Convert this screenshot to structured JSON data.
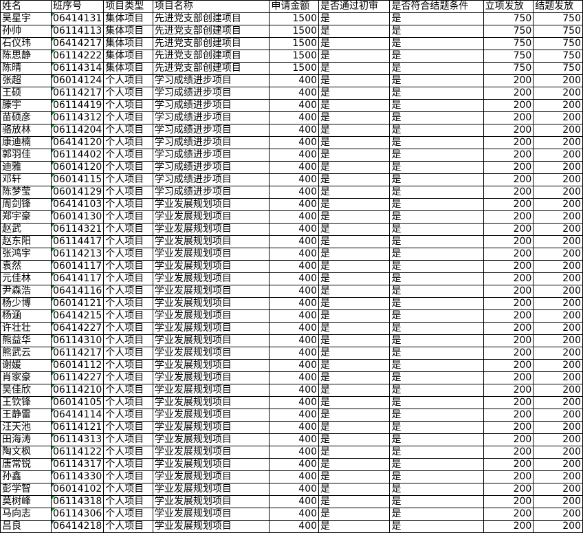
{
  "headers": [
    "姓名",
    "班序号",
    "项目类型",
    "项目名称",
    "申请金额",
    "是否通过初审",
    "是否符合结题条件",
    "立项发放",
    "结题发放"
  ],
  "rows": [
    [
      "吴星宇",
      "06414131",
      "集体项目",
      "先进党支部创建项目",
      "1500",
      "是",
      "是",
      "750",
      "750"
    ],
    [
      "孙帅",
      "06114113",
      "集体项目",
      "先进党支部创建项目",
      "1500",
      "是",
      "是",
      "750",
      "750"
    ],
    [
      "石仪玮",
      "06414217",
      "集体项目",
      "先进党支部创建项目",
      "1500",
      "是",
      "是",
      "750",
      "750"
    ],
    [
      "陈思静",
      "06114222",
      "集体项目",
      "先进党支部创建项目",
      "1500",
      "是",
      "是",
      "750",
      "750"
    ],
    [
      "陈晴",
      "06114314",
      "集体项目",
      "先进党支部创建项目",
      "1500",
      "是",
      "是",
      "750",
      "750"
    ],
    [
      "张超",
      "06014124",
      "个人项目",
      "学习成绩进步项目",
      "400",
      "是",
      "是",
      "200",
      "200"
    ],
    [
      "王硕",
      "06114217",
      "个人项目",
      "学习成绩进步项目",
      "400",
      "是",
      "是",
      "200",
      "200"
    ],
    [
      "滕宇",
      "06114419",
      "个人项目",
      "学习成绩进步项目",
      "400",
      "是",
      "是",
      "200",
      "200"
    ],
    [
      "苗硕彦",
      "06114312",
      "个人项目",
      "学习成绩进步项目",
      "400",
      "是",
      "是",
      "200",
      "200"
    ],
    [
      "骆放林",
      "06114204",
      "个人项目",
      "学习成绩进步项目",
      "400",
      "是",
      "是",
      "200",
      "200"
    ],
    [
      "康迪楠",
      "06414120",
      "个人项目",
      "学习成绩进步项目",
      "400",
      "是",
      "是",
      "200",
      "200"
    ],
    [
      "郭羽佳",
      "06114402",
      "个人项目",
      "学习成绩进步项目",
      "400",
      "是",
      "是",
      "200",
      "200"
    ],
    [
      "迪雅",
      "06014120",
      "个人项目",
      "学习成绩进步项目",
      "400",
      "是",
      "是",
      "200",
      "200"
    ],
    [
      "邓轩",
      "06014115",
      "个人项目",
      "学习成绩进步项目",
      "400",
      "是",
      "是",
      "200",
      "200"
    ],
    [
      "陈梦莹",
      "06014129",
      "个人项目",
      "学习成绩进步项目",
      "400",
      "是",
      "是",
      "200",
      "200"
    ],
    [
      "周剑锋",
      "06414103",
      "个人项目",
      "学业发展规划项目",
      "400",
      "是",
      "是",
      "200",
      "200"
    ],
    [
      "郑宇豪",
      "06014130",
      "个人项目",
      "学业发展规划项目",
      "400",
      "是",
      "是",
      "200",
      "200"
    ],
    [
      "赵武",
      "06114321",
      "个人项目",
      "学业发展规划项目",
      "400",
      "是",
      "是",
      "200",
      "200"
    ],
    [
      "赵东阳",
      "06114417",
      "个人项目",
      "学业发展规划项目",
      "400",
      "是",
      "是",
      "200",
      "200"
    ],
    [
      "张鸿宇",
      "06114213",
      "个人项目",
      "学业发展规划项目",
      "400",
      "是",
      "是",
      "200",
      "200"
    ],
    [
      "袁然",
      "06014117",
      "个人项目",
      "学业发展规划项目",
      "400",
      "是",
      "是",
      "200",
      "200"
    ],
    [
      "元佳林",
      "06414117",
      "个人项目",
      "学业发展规划项目",
      "400",
      "是",
      "是",
      "200",
      "200"
    ],
    [
      "尹森浩",
      "06414116",
      "个人项目",
      "学业发展规划项目",
      "400",
      "是",
      "是",
      "200",
      "200"
    ],
    [
      "杨少博",
      "06014121",
      "个人项目",
      "学业发展规划项目",
      "400",
      "是",
      "是",
      "200",
      "200"
    ],
    [
      "杨涵",
      "06414215",
      "个人项目",
      "学业发展规划项目",
      "400",
      "是",
      "是",
      "200",
      "200"
    ],
    [
      "许壮壮",
      "06414227",
      "个人项目",
      "学业发展规划项目",
      "400",
      "是",
      "是",
      "200",
      "200"
    ],
    [
      "熊益华",
      "06114310",
      "个人项目",
      "学业发展规划项目",
      "400",
      "是",
      "是",
      "200",
      "200"
    ],
    [
      "熊武云",
      "06114217",
      "个人项目",
      "学业发展规划项目",
      "400",
      "是",
      "是",
      "200",
      "200"
    ],
    [
      "谢媛",
      "06014112",
      "个人项目",
      "学业发展规划项目",
      "400",
      "是",
      "是",
      "200",
      "200"
    ],
    [
      "肖家豪",
      "06114227",
      "个人项目",
      "学业发展规划项目",
      "400",
      "是",
      "是",
      "200",
      "200"
    ],
    [
      "吴佳欣",
      "06114210",
      "个人项目",
      "学业发展规划项目",
      "400",
      "是",
      "是",
      "200",
      "200"
    ],
    [
      "王钦锋",
      "06014105",
      "个人项目",
      "学业发展规划项目",
      "400",
      "是",
      "是",
      "200",
      "200"
    ],
    [
      "王静雷",
      "06414114",
      "个人项目",
      "学业发展规划项目",
      "400",
      "是",
      "是",
      "200",
      "200"
    ],
    [
      "汪天池",
      "06114121",
      "个人项目",
      "学业发展规划项目",
      "400",
      "是",
      "是",
      "200",
      "200"
    ],
    [
      "田海涛",
      "06114313",
      "个人项目",
      "学业发展规划项目",
      "400",
      "是",
      "是",
      "200",
      "200"
    ],
    [
      "陶文枫",
      "06114122",
      "个人项目",
      "学业发展规划项目",
      "400",
      "是",
      "是",
      "200",
      "200"
    ],
    [
      "唐常锐",
      "06114317",
      "个人项目",
      "学业发展规划项目",
      "400",
      "是",
      "是",
      "200",
      "200"
    ],
    [
      "孙鑫",
      "06114330",
      "个人项目",
      "学业发展规划项目",
      "400",
      "是",
      "是",
      "200",
      "200"
    ],
    [
      "彭学智",
      "06014102",
      "个人项目",
      "学业发展规划项目",
      "400",
      "是",
      "是",
      "200",
      "200"
    ],
    [
      "莫树峰",
      "06114318",
      "个人项目",
      "学业发展规划项目",
      "400",
      "是",
      "是",
      "200",
      "200"
    ],
    [
      "马向志",
      "06114306",
      "个人项目",
      "学业发展规划项目",
      "400",
      "是",
      "是",
      "200",
      "200"
    ],
    [
      "吕良",
      "06414218",
      "个人项目",
      "学业发展规划项目",
      "400",
      "是",
      "是",
      "200",
      "200"
    ]
  ]
}
